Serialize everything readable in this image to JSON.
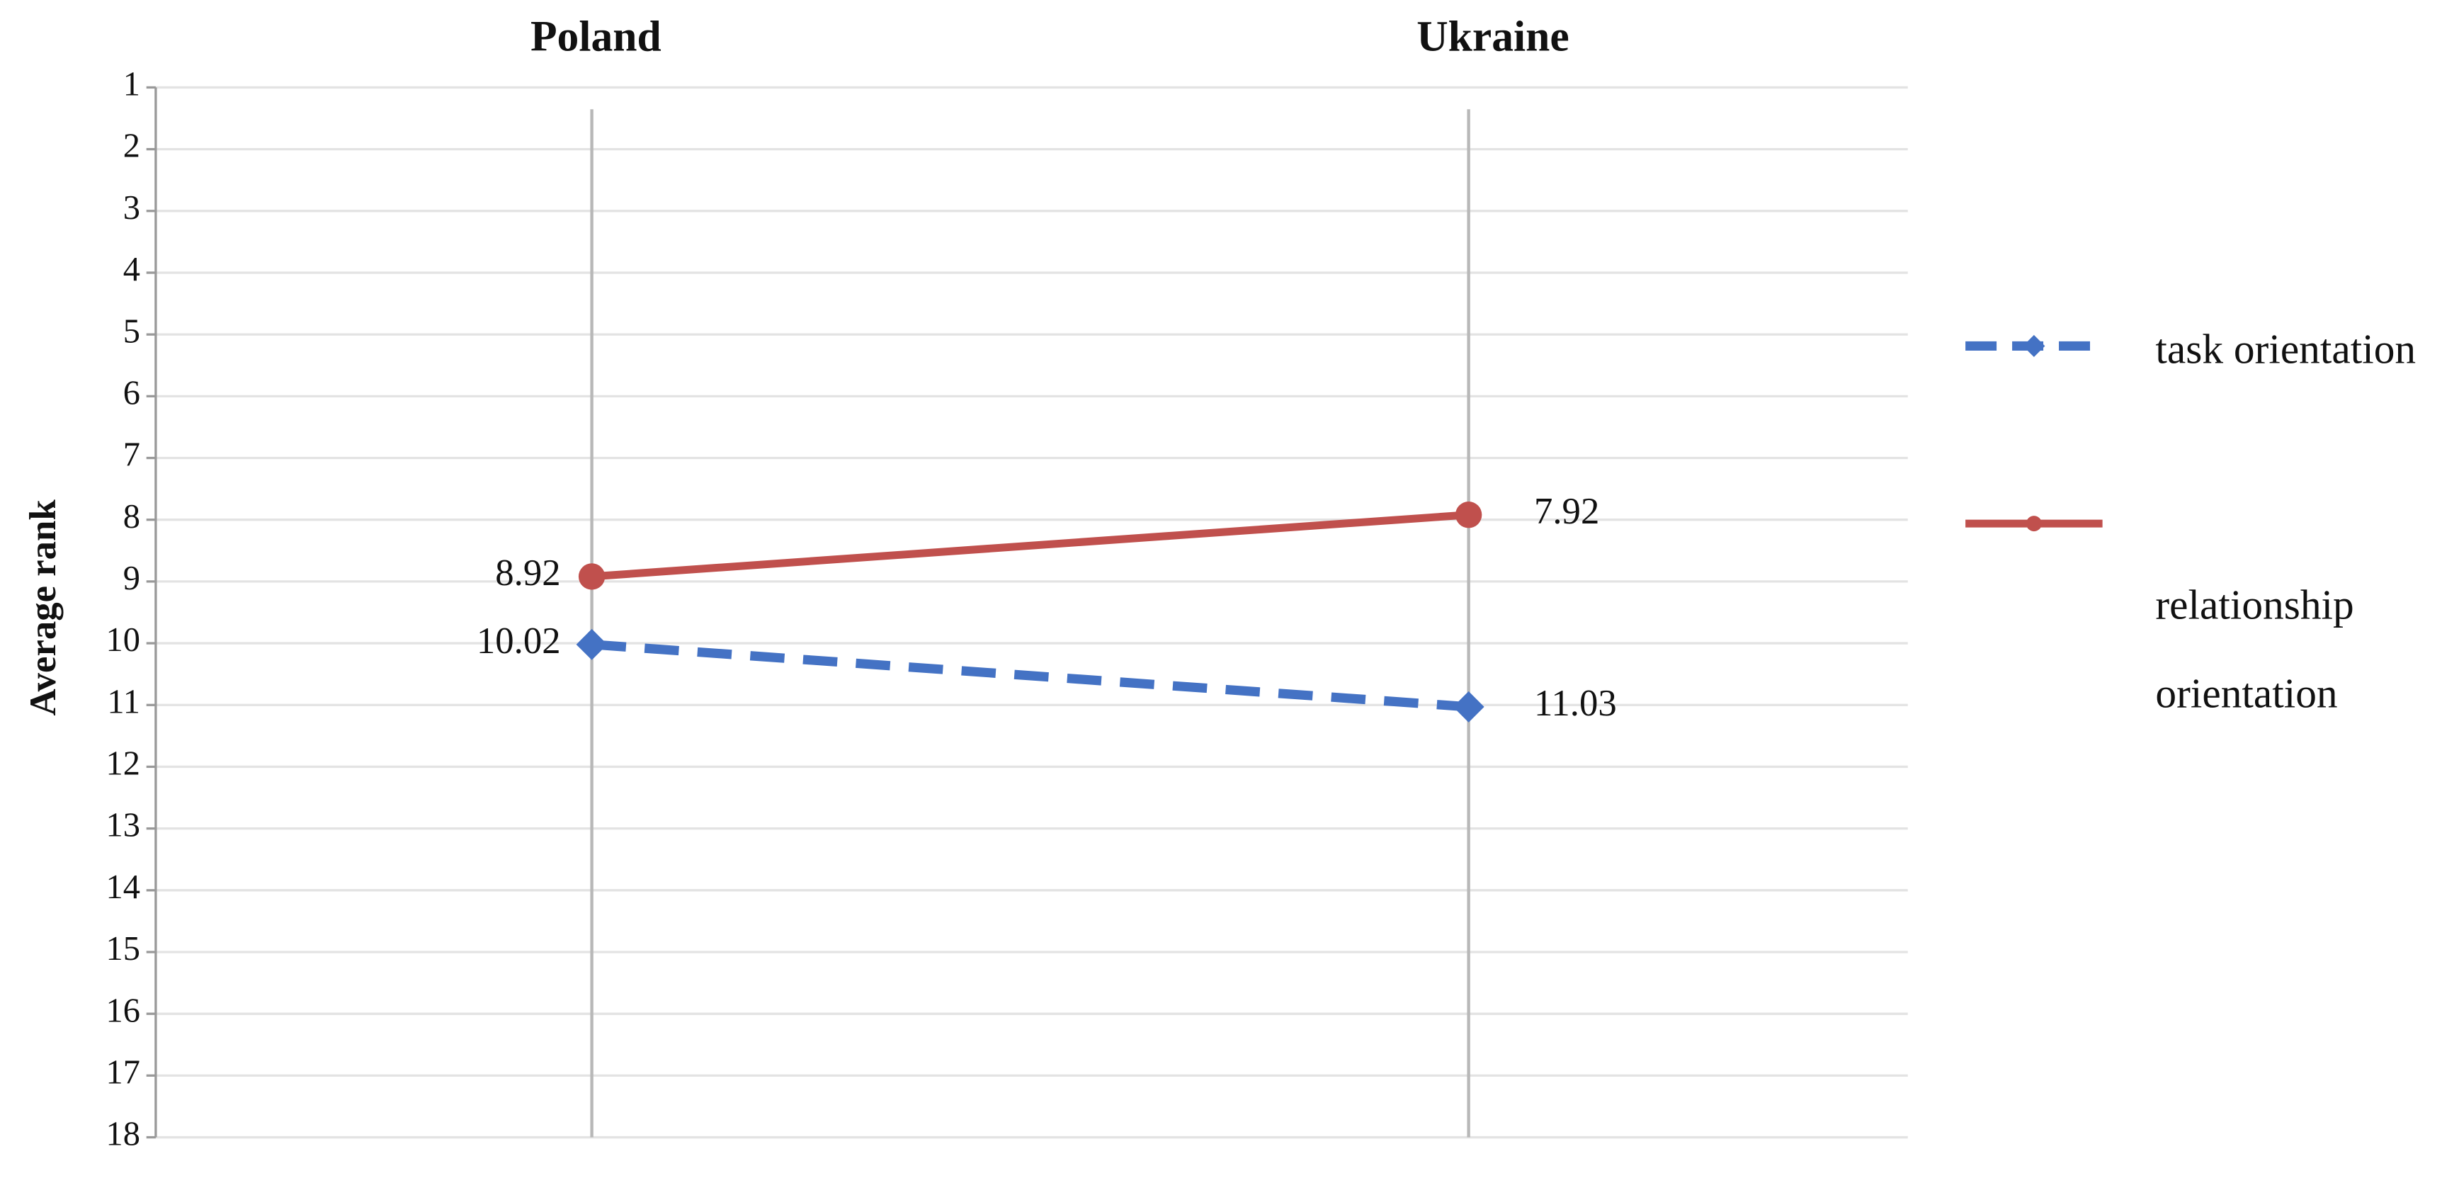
{
  "chart_data": {
    "type": "line",
    "categories": [
      "Poland",
      "Ukraine"
    ],
    "y_label": "Average rank",
    "ylim": [
      18,
      1
    ],
    "yticks": [
      1,
      2,
      3,
      4,
      5,
      6,
      7,
      8,
      9,
      10,
      11,
      12,
      13,
      14,
      15,
      16,
      17,
      18
    ],
    "grid": true,
    "legend": "right",
    "series": [
      {
        "name": "task orientation",
        "color": "#4472c4",
        "dash": true,
        "marker": "diamond",
        "values": [
          10.02,
          11.03
        ]
      },
      {
        "name": "relationship orientation",
        "color": "#c0504d",
        "dash": false,
        "marker": "circle",
        "values": [
          8.92,
          7.92
        ]
      }
    ]
  }
}
